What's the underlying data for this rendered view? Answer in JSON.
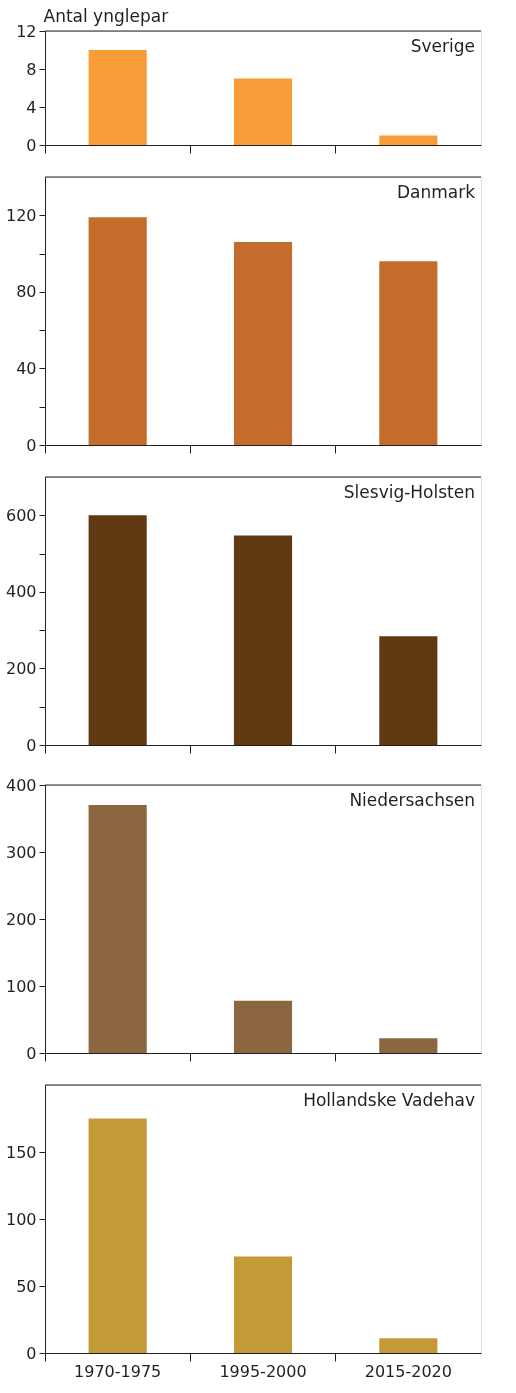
{
  "chart_data": [
    {
      "type": "bar",
      "title": "Sverige",
      "ylabel": "Antal ynglepar",
      "categories": [
        null,
        null,
        null
      ],
      "values": [
        10,
        7,
        1
      ],
      "color": "#f79c37",
      "ylim": [
        0,
        12
      ],
      "yticks": [
        0,
        4,
        8,
        12
      ],
      "tick_labels": "y",
      "grid": false
    },
    {
      "type": "bar",
      "title": "Danmark",
      "categories": [
        null,
        null,
        null
      ],
      "values": [
        119,
        106,
        96
      ],
      "color": "#c46c2c",
      "ylim": [
        0,
        140
      ],
      "yticks": [
        0,
        {
          "value": 20,
          "label": null
        },
        40,
        {
          "value": 60,
          "label": null
        },
        80,
        {
          "value": 100,
          "label": null
        },
        120
      ],
      "tick_labels": "y",
      "grid": false
    },
    {
      "type": "bar",
      "title": "Slesvig-Holsten",
      "categories": [
        null,
        null,
        null
      ],
      "values": [
        600,
        547,
        284
      ],
      "color": "#603913",
      "ylim": [
        0,
        700
      ],
      "yticks": [
        0,
        {
          "value": 100,
          "label": null
        },
        200,
        {
          "value": 300,
          "label": null
        },
        400,
        {
          "value": 500,
          "label": null
        },
        600
      ],
      "tick_labels": "y",
      "grid": false
    },
    {
      "type": "bar",
      "title": "Niedersachsen",
      "categories": [
        null,
        null,
        null
      ],
      "values": [
        370,
        78,
        22
      ],
      "color": "#8c6640",
      "ylim": [
        0,
        400
      ],
      "yticks": [
        0,
        100,
        200,
        300,
        400
      ],
      "tick_labels": "y",
      "grid": false
    },
    {
      "type": "bar",
      "title": "Hollandske Vadehav",
      "categories": [
        "1970-1975",
        "1995-2000",
        "2015-2020"
      ],
      "values": [
        175,
        72,
        11
      ],
      "color": "#c49a36",
      "ylim": [
        0,
        200
      ],
      "yticks": [
        0,
        50,
        100,
        150
      ],
      "grid": false
    }
  ]
}
